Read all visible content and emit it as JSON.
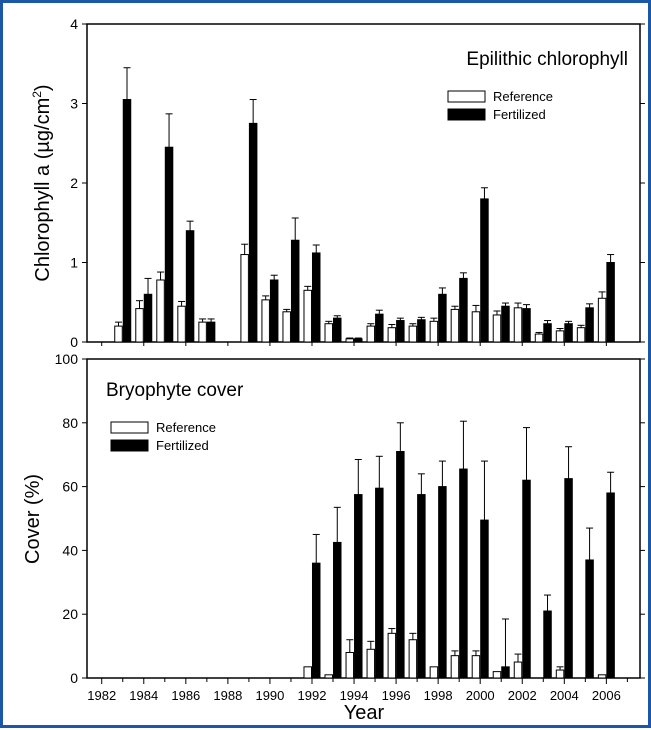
{
  "chart_data": [
    {
      "type": "bar",
      "panel": "top",
      "title": "Epilithic chlorophyll",
      "ylabel": "Chlorophyll a (µg/cm²)",
      "ylabel_main": "Chlorophyll a (µg/cm",
      "ylabel_sup": "2",
      "ylabel_end": ")",
      "ylim": [
        0,
        4
      ],
      "yticks": [
        "0",
        "1",
        "2",
        "3",
        "4"
      ],
      "grid": false,
      "legend": "top-right",
      "x": [
        1983,
        1984,
        1985,
        1986,
        1987,
        1989,
        1990,
        1991,
        1992,
        1993,
        1994,
        1995,
        1996,
        1997,
        1998,
        1999,
        2000,
        2001,
        2002,
        2003,
        2004,
        2005,
        2006
      ],
      "series": [
        {
          "name": "Reference",
          "color": "#ffffff",
          "values": [
            0.2,
            0.42,
            0.78,
            0.45,
            0.25,
            1.1,
            0.53,
            0.38,
            0.65,
            0.23,
            0.04,
            0.2,
            0.18,
            0.2,
            0.26,
            0.41,
            0.38,
            0.34,
            0.43,
            0.1,
            0.14,
            0.18,
            0.55
          ],
          "errors": [
            0.05,
            0.1,
            0.1,
            0.06,
            0.04,
            0.13,
            0.05,
            0.03,
            0.05,
            0.03,
            0.01,
            0.03,
            0.04,
            0.03,
            0.04,
            0.04,
            0.08,
            0.05,
            0.06,
            0.02,
            0.03,
            0.03,
            0.08
          ]
        },
        {
          "name": "Fertilized",
          "color": "#000000",
          "values": [
            3.05,
            0.6,
            2.45,
            1.4,
            0.25,
            2.75,
            0.78,
            1.28,
            1.12,
            0.3,
            0.04,
            0.35,
            0.27,
            0.28,
            0.6,
            0.8,
            1.8,
            0.45,
            0.42,
            0.23,
            0.23,
            0.43,
            1.0
          ],
          "errors": [
            0.4,
            0.2,
            0.42,
            0.12,
            0.04,
            0.3,
            0.06,
            0.28,
            0.1,
            0.03,
            0.01,
            0.05,
            0.03,
            0.03,
            0.08,
            0.07,
            0.14,
            0.04,
            0.05,
            0.04,
            0.03,
            0.05,
            0.1
          ]
        }
      ]
    },
    {
      "type": "bar",
      "panel": "bottom",
      "title": "Bryophyte cover",
      "xlabel": "Year",
      "ylabel": "Cover (%)",
      "ylim": [
        0,
        100
      ],
      "yticks": [
        "0",
        "20",
        "40",
        "60",
        "80",
        "100"
      ],
      "xlim": [
        1981.3,
        2007.6
      ],
      "xticks": [
        "1982",
        "1984",
        "1986",
        "1988",
        "1990",
        "1992",
        "1994",
        "1996",
        "1998",
        "2000",
        "2002",
        "2004",
        "2006"
      ],
      "grid": false,
      "legend": "top-left",
      "x": [
        1992,
        1993,
        1994,
        1995,
        1996,
        1997,
        1998,
        1999,
        2000,
        2001,
        2002,
        2003,
        2004,
        2005,
        2006
      ],
      "series": [
        {
          "name": "Reference",
          "color": "#ffffff",
          "values": [
            3.5,
            1,
            8,
            9,
            14,
            12,
            3.5,
            7,
            7,
            2,
            5,
            0,
            2.5,
            0,
            1
          ],
          "errors": [
            0,
            0,
            4,
            2.5,
            1.5,
            2,
            0,
            1.5,
            1.5,
            0,
            2.5,
            0,
            1,
            0,
            0
          ]
        },
        {
          "name": "Fertilized",
          "color": "#000000",
          "values": [
            36,
            42.5,
            57.5,
            59.5,
            71,
            57.5,
            60,
            65.5,
            49.5,
            3.5,
            62,
            21,
            62.5,
            37,
            58
          ],
          "errors": [
            9,
            11,
            11,
            10,
            9,
            6.5,
            8,
            15,
            18.5,
            15,
            16.5,
            5,
            10,
            10,
            6.5
          ]
        }
      ]
    }
  ]
}
